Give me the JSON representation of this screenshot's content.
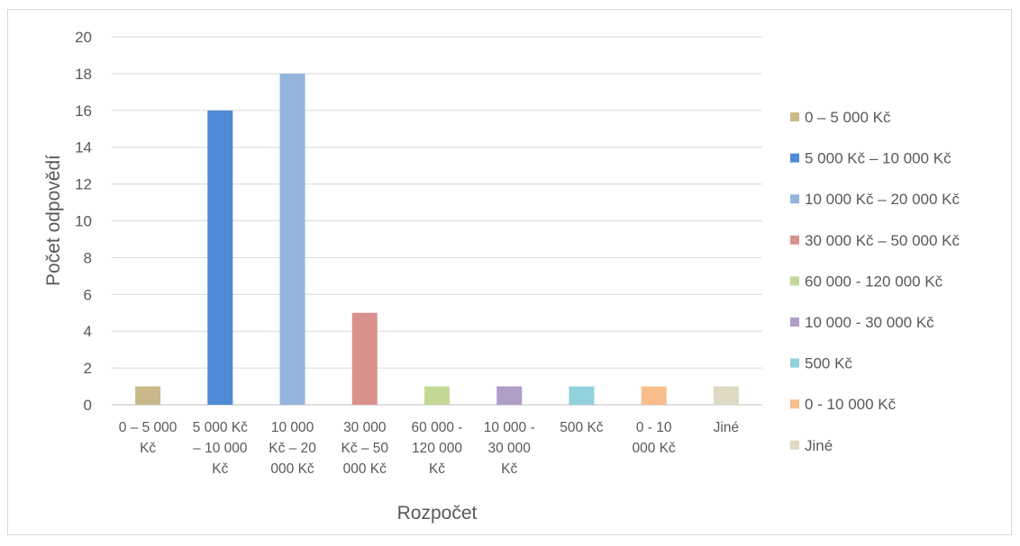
{
  "chart_data": {
    "type": "bar",
    "title": "",
    "xlabel": "Rozpočet",
    "ylabel": "Počet odpovědí",
    "ylim": [
      0,
      20
    ],
    "yticks": [
      0,
      2,
      4,
      6,
      8,
      10,
      12,
      14,
      16,
      18,
      20
    ],
    "grid": true,
    "legend_position": "right",
    "categories": [
      "0 – 5 000 Kč",
      "5 000 Kč – 10 000 Kč",
      "10 000 Kč – 20 000 Kč",
      "30 000 Kč – 50 000 Kč",
      "60 000 - 120 000 Kč",
      "10 000 - 30 000 Kč",
      "500 Kč",
      "0 - 10 000 Kč",
      "Jiné"
    ],
    "category_label_lines": [
      [
        "0 – 5 000",
        "Kč"
      ],
      [
        "5 000 Kč",
        "– 10 000",
        "Kč"
      ],
      [
        "10 000",
        "Kč – 20",
        "000 Kč"
      ],
      [
        "30 000",
        "Kč – 50",
        "000 Kč"
      ],
      [
        "60 000 -",
        "120 000",
        "Kč"
      ],
      [
        "10 000 -",
        "30 000",
        "Kč"
      ],
      [
        "500 Kč"
      ],
      [
        "0 - 10",
        "000 Kč"
      ],
      [
        "Jiné"
      ]
    ],
    "series": [
      {
        "name": "0 – 5 000 Kč",
        "values": [
          1,
          0,
          0,
          0,
          0,
          0,
          0,
          0,
          0
        ],
        "color": "#c9b98a"
      },
      {
        "name": "5 000 Kč – 10 000 Kč",
        "values": [
          0,
          16,
          0,
          0,
          0,
          0,
          0,
          0,
          0
        ],
        "color": "#4f8ad6"
      },
      {
        "name": "10 000 Kč – 20 000 Kč",
        "values": [
          0,
          0,
          18,
          0,
          0,
          0,
          0,
          0,
          0
        ],
        "color": "#95b4dc"
      },
      {
        "name": "30 000 Kč – 50 000 Kč",
        "values": [
          0,
          0,
          0,
          5,
          0,
          0,
          0,
          0,
          0
        ],
        "color": "#d9918e"
      },
      {
        "name": "60 000 - 120 000 Kč",
        "values": [
          0,
          0,
          0,
          0,
          1,
          0,
          0,
          0,
          0
        ],
        "color": "#c3d896"
      },
      {
        "name": "10 000 - 30 000 Kč",
        "values": [
          0,
          0,
          0,
          0,
          0,
          1,
          0,
          0,
          0
        ],
        "color": "#ae9dc6"
      },
      {
        "name": "500 Kč",
        "values": [
          0,
          0,
          0,
          0,
          0,
          0,
          1,
          0,
          0
        ],
        "color": "#90d1dd"
      },
      {
        "name": "0 - 10 000 Kč",
        "values": [
          0,
          0,
          0,
          0,
          0,
          0,
          0,
          1,
          0
        ],
        "color": "#f9bd8c"
      },
      {
        "name": "Jiné",
        "values": [
          0,
          0,
          0,
          0,
          0,
          0,
          0,
          0,
          1
        ],
        "color": "#ddd9c3"
      }
    ]
  }
}
